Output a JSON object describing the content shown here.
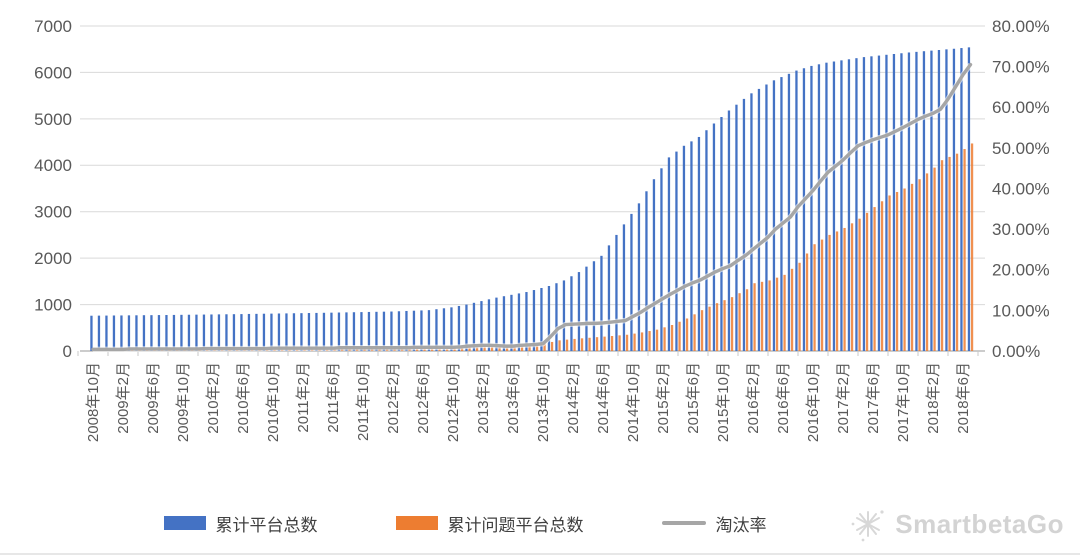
{
  "watermark": {
    "text": "SmartbetaGo",
    "icon": "flower-asterisk-icon"
  },
  "chart_data": {
    "type": "bar",
    "subtype": "combo-bar-line",
    "title": "",
    "xlabel": "",
    "ylabel_left": "",
    "ylabel_right": "",
    "grid": true,
    "x_start_month": "2008年10月",
    "x_end_month": "2018年7月",
    "x_tick_labels": [
      "2008年10月",
      "2009年2月",
      "2009年6月",
      "2009年10月",
      "2010年2月",
      "2010年6月",
      "2010年10月",
      "2011年2月",
      "2011年6月",
      "2011年10月",
      "2012年2月",
      "2012年6月",
      "2012年10月",
      "2013年2月",
      "2013年6月",
      "2013年10月",
      "2014年2月",
      "2014年6月",
      "2014年10月",
      "2015年2月",
      "2015年6月",
      "2015年10月",
      "2016年2月",
      "2016年6月",
      "2016年10月",
      "2017年2月",
      "2017年6月",
      "2017年10月",
      "2018年2月",
      "2018年6月"
    ],
    "label_every_n_bars": 4,
    "left_axis": {
      "min": 0,
      "max": 7000,
      "ticks": [
        "0",
        "1000",
        "2000",
        "3000",
        "4000",
        "5000",
        "6000",
        "7000"
      ]
    },
    "right_axis": {
      "min": 0,
      "max": 80,
      "ticks": [
        "0.00%",
        "10.00%",
        "20.00%",
        "30.00%",
        "40.00%",
        "50.00%",
        "60.00%",
        "70.00%",
        "80.00%"
      ]
    },
    "legend": {
      "position": "bottom",
      "entries": [
        "累计平台总数",
        "累计问题平台总数",
        "淘汰率"
      ]
    },
    "colors": {
      "total_bar": "#4472C4",
      "problem_bar": "#ED7D31",
      "rate_line": "#A6A6A6",
      "gridline": "#D9D9D9",
      "axis_text": "#595959"
    },
    "series": [
      {
        "name": "累计平台总数",
        "type": "bar",
        "axis": "left",
        "color": "#4472C4",
        "values": [
          760,
          762,
          763,
          765,
          766,
          768,
          769,
          771,
          772,
          774,
          775,
          777,
          779,
          781,
          783,
          785,
          787,
          789,
          791,
          793,
          795,
          798,
          800,
          803,
          805,
          808,
          810,
          813,
          815,
          818,
          820,
          823,
          826,
          829,
          832,
          835,
          838,
          841,
          844,
          847,
          850,
          856,
          862,
          868,
          874,
          880,
          900,
          920,
          940,
          970,
          1000,
          1038,
          1075,
          1113,
          1150,
          1180,
          1210,
          1240,
          1270,
          1313,
          1357,
          1400,
          1460,
          1520,
          1610,
          1700,
          1817,
          1933,
          2050,
          2275,
          2500,
          2727,
          2953,
          3180,
          3440,
          3700,
          3935,
          4170,
          4295,
          4420,
          4515,
          4610,
          4755,
          4900,
          5040,
          5180,
          5305,
          5430,
          5550,
          5645,
          5740,
          5830,
          5900,
          5970,
          6040,
          6090,
          6140,
          6175,
          6210,
          6235,
          6260,
          6283,
          6307,
          6330,
          6347,
          6363,
          6380,
          6397,
          6413,
          6430,
          6443,
          6457,
          6470,
          6483,
          6497,
          6510,
          6525,
          6540
        ]
      },
      {
        "name": "累计问题平台总数",
        "type": "bar",
        "axis": "left",
        "color": "#ED7D31",
        "values": [
          15,
          16,
          16,
          17,
          17,
          18,
          18,
          19,
          19,
          20,
          20,
          21,
          21,
          22,
          22,
          23,
          23,
          24,
          24,
          25,
          25,
          26,
          27,
          27,
          28,
          29,
          30,
          30,
          31,
          32,
          33,
          33,
          34,
          35,
          36,
          36,
          37,
          38,
          39,
          39,
          40,
          43,
          45,
          48,
          50,
          53,
          55,
          58,
          60,
          66,
          73,
          79,
          85,
          91,
          98,
          104,
          110,
          123,
          135,
          148,
          160,
          195,
          230,
          245,
          260,
          273,
          285,
          298,
          310,
          323,
          337,
          350,
          375,
          400,
          430,
          460,
          510,
          560,
          630,
          700,
          790,
          880,
          955,
          1030,
          1095,
          1160,
          1245,
          1330,
          1460,
          1490,
          1520,
          1580,
          1640,
          1770,
          1900,
          2100,
          2300,
          2400,
          2500,
          2575,
          2650,
          2750,
          2850,
          2975,
          3100,
          3225,
          3350,
          3425,
          3500,
          3600,
          3700,
          3825,
          3950,
          4110,
          4180,
          4250,
          4350,
          4470
        ]
      },
      {
        "name": "淘汰率",
        "type": "line",
        "axis": "right",
        "color": "#A6A6A6",
        "values_percent": [
          0.4,
          0.4,
          0.4,
          0.4,
          0.4,
          0.5,
          0.5,
          0.5,
          0.5,
          0.5,
          0.5,
          0.5,
          0.5,
          0.5,
          0.5,
          0.6,
          0.6,
          0.6,
          0.6,
          0.6,
          0.6,
          0.6,
          0.6,
          0.6,
          0.7,
          0.7,
          0.7,
          0.7,
          0.7,
          0.7,
          0.7,
          0.7,
          0.7,
          0.8,
          0.8,
          0.8,
          0.8,
          0.8,
          0.8,
          0.8,
          0.8,
          0.8,
          0.8,
          0.9,
          0.9,
          0.9,
          0.9,
          0.9,
          0.9,
          1.0,
          1.2,
          1.3,
          1.4,
          1.4,
          1.3,
          1.2,
          1.2,
          1.4,
          1.5,
          1.6,
          1.8,
          3.5,
          5.5,
          6.5,
          6.6,
          6.7,
          6.8,
          6.8,
          6.9,
          7.1,
          7.3,
          7.5,
          8.5,
          9.5,
          10.7,
          11.8,
          12.9,
          14.0,
          15.0,
          16.0,
          16.8,
          17.5,
          18.5,
          19.5,
          20.3,
          21.0,
          22.3,
          23.5,
          25.0,
          26.5,
          28.0,
          30.0,
          31.5,
          33.0,
          35.5,
          37.5,
          39.5,
          41.8,
          44.0,
          45.5,
          47.0,
          48.8,
          50.5,
          51.3,
          52.0,
          52.6,
          53.2,
          54.1,
          55.0,
          56.0,
          57.0,
          57.8,
          58.5,
          59.5,
          62.0,
          65.0,
          68.0,
          70.5
        ]
      }
    ]
  }
}
